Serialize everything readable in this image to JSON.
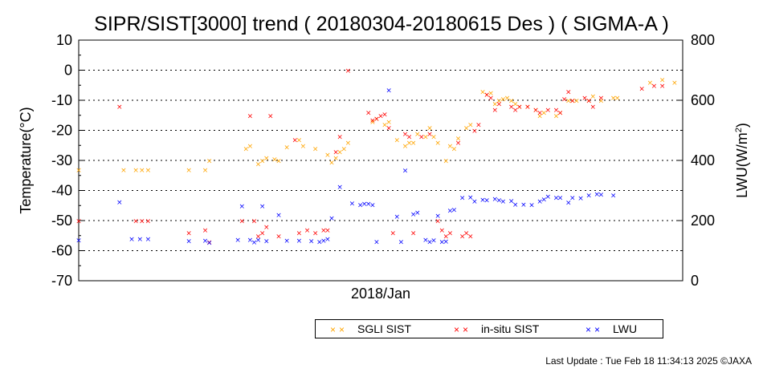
{
  "chart_data": {
    "type": "scatter",
    "title": "SIPR/SIST[3000] trend ( 20180304-20180615 Des ) ( SIGMA-A )",
    "ylabel": "Temperature(°C)",
    "y2label_base": "LWU(W/m",
    "y2label_sup": "2",
    "y2label_end": ")",
    "xlabel": "2018/Jan",
    "ylim": [
      -70,
      10
    ],
    "y2lim": [
      0,
      800
    ],
    "yticks": [
      "10",
      "0",
      "-10",
      "-20",
      "-30",
      "-40",
      "-50",
      "-60",
      "-70"
    ],
    "y2ticks": [
      "800",
      "600",
      "400",
      "200",
      "0"
    ],
    "x_range_days": [
      0,
      100
    ],
    "grid": "dotted horizontal at -60,-40,-20,0 and y2 gridlines",
    "legend_placement": "bottom",
    "series": [
      {
        "name": "SGLI SIST",
        "color": "#ffa500",
        "axis": "left",
        "points": [
          [
            0,
            -33
          ],
          [
            11,
            -33
          ],
          [
            14,
            -33
          ],
          [
            15.5,
            -33
          ],
          [
            17,
            -33
          ],
          [
            27,
            -33
          ],
          [
            31,
            -33
          ],
          [
            32,
            -30
          ],
          [
            41,
            -26
          ],
          [
            42,
            -25
          ],
          [
            44,
            -31
          ],
          [
            45,
            -30
          ],
          [
            46,
            -29
          ],
          [
            48,
            -29.5
          ],
          [
            49,
            -30
          ],
          [
            51,
            -25.5
          ],
          [
            54,
            -23
          ],
          [
            55,
            -25
          ],
          [
            58,
            -26
          ],
          [
            61,
            -28
          ],
          [
            62,
            -30.5
          ],
          [
            63,
            -29
          ],
          [
            64,
            -27
          ],
          [
            65,
            -26
          ],
          [
            66,
            -24
          ],
          [
            72,
            -17
          ],
          [
            73,
            -16
          ],
          [
            75,
            -18
          ],
          [
            76,
            -17
          ],
          [
            78,
            -23
          ],
          [
            80,
            -25
          ],
          [
            81,
            -24
          ],
          [
            82,
            -24
          ],
          [
            83,
            -21
          ],
          [
            85,
            -22
          ],
          [
            86,
            -19
          ],
          [
            87,
            -22
          ],
          [
            88,
            -24
          ],
          [
            90,
            -30
          ],
          [
            91,
            -25
          ],
          [
            92,
            -26
          ],
          [
            93,
            -22.5
          ],
          [
            95,
            -19
          ],
          [
            96,
            -18
          ],
          [
            99,
            -7
          ],
          [
            100,
            -8
          ],
          [
            101,
            -7.5
          ],
          [
            102,
            -11
          ],
          [
            103,
            -10
          ],
          [
            104,
            -9.5
          ],
          [
            105,
            -9
          ],
          [
            106,
            -10
          ],
          [
            107,
            -11
          ],
          [
            108,
            -12
          ],
          [
            110,
            -12
          ],
          [
            112,
            -13
          ],
          [
            113,
            -15
          ],
          [
            114,
            -14
          ],
          [
            117,
            -15
          ],
          [
            118,
            -14
          ],
          [
            120,
            -10
          ],
          [
            121,
            -10
          ],
          [
            122,
            -10
          ],
          [
            125,
            -10
          ],
          [
            126,
            -8.5
          ],
          [
            128,
            -10
          ],
          [
            131,
            -9
          ],
          [
            132,
            -9
          ],
          [
            140,
            -4
          ],
          [
            143,
            -3
          ],
          [
            146,
            -4
          ]
        ]
      },
      {
        "name": "in-situ SIST",
        "color": "#ff0000",
        "axis": "left",
        "points": [
          [
            0,
            -50
          ],
          [
            10,
            -12
          ],
          [
            14,
            -50
          ],
          [
            15.5,
            -50
          ],
          [
            17,
            -50
          ],
          [
            27,
            -54
          ],
          [
            31,
            -53
          ],
          [
            32,
            -57
          ],
          [
            40,
            -50
          ],
          [
            42,
            -15
          ],
          [
            43,
            -50
          ],
          [
            44,
            -55
          ],
          [
            45,
            -54
          ],
          [
            46,
            -52
          ],
          [
            47,
            -15
          ],
          [
            49,
            -55
          ],
          [
            53,
            -23
          ],
          [
            54,
            -54
          ],
          [
            56,
            -53
          ],
          [
            58,
            -54
          ],
          [
            60,
            -53
          ],
          [
            61,
            -53
          ],
          [
            63,
            -27
          ],
          [
            64,
            -22
          ],
          [
            66,
            0
          ],
          [
            71,
            -14
          ],
          [
            72,
            -16.5
          ],
          [
            73,
            -16
          ],
          [
            74,
            -15
          ],
          [
            75,
            -14.5
          ],
          [
            76,
            -19
          ],
          [
            77,
            -54
          ],
          [
            80,
            -21
          ],
          [
            81,
            -22
          ],
          [
            82,
            -54
          ],
          [
            84,
            -22
          ],
          [
            86,
            -21
          ],
          [
            88,
            -50
          ],
          [
            89,
            -53
          ],
          [
            90,
            -55
          ],
          [
            91,
            -54
          ],
          [
            93,
            -24
          ],
          [
            94,
            -55
          ],
          [
            95,
            -54
          ],
          [
            96,
            -55
          ],
          [
            97,
            -20
          ],
          [
            98,
            -18
          ],
          [
            100,
            -8
          ],
          [
            101,
            -9
          ],
          [
            102,
            -13
          ],
          [
            103,
            -11
          ],
          [
            106,
            -12
          ],
          [
            107,
            -13
          ],
          [
            108,
            -12
          ],
          [
            110,
            -12
          ],
          [
            112,
            -13
          ],
          [
            113,
            -14
          ],
          [
            115,
            -13
          ],
          [
            117,
            -13
          ],
          [
            118,
            -14
          ],
          [
            119,
            -9.5
          ],
          [
            120,
            -7
          ],
          [
            121,
            -10
          ],
          [
            124,
            -9
          ],
          [
            125,
            -10
          ],
          [
            126,
            -12
          ],
          [
            128,
            -9
          ],
          [
            138,
            -6
          ],
          [
            141,
            -5
          ],
          [
            143,
            -5
          ]
        ]
      },
      {
        "name": "LWU",
        "color": "#0000ff",
        "axis": "right",
        "points": [
          [
            0,
            136
          ],
          [
            10,
            263
          ],
          [
            13,
            140
          ],
          [
            15,
            140
          ],
          [
            17,
            140
          ],
          [
            27,
            133
          ],
          [
            31,
            135
          ],
          [
            32,
            128
          ],
          [
            39,
            138
          ],
          [
            40,
            250
          ],
          [
            42,
            138
          ],
          [
            43,
            130
          ],
          [
            44,
            138
          ],
          [
            45,
            250
          ],
          [
            46,
            133
          ],
          [
            49,
            220
          ],
          [
            51,
            135
          ],
          [
            54,
            135
          ],
          [
            57,
            133
          ],
          [
            59,
            131
          ],
          [
            60,
            135
          ],
          [
            61,
            140
          ],
          [
            62,
            210
          ],
          [
            64,
            313
          ],
          [
            67,
            259
          ],
          [
            69,
            253
          ],
          [
            70,
            257
          ],
          [
            71,
            258
          ],
          [
            72,
            253
          ],
          [
            73,
            131
          ],
          [
            76,
            635
          ],
          [
            78,
            215
          ],
          [
            79,
            131
          ],
          [
            80,
            368
          ],
          [
            82,
            223
          ],
          [
            83,
            228
          ],
          [
            85,
            138
          ],
          [
            86,
            131
          ],
          [
            87,
            136
          ],
          [
            88,
            217
          ],
          [
            89,
            131
          ],
          [
            90,
            132
          ],
          [
            91,
            235
          ],
          [
            92,
            238
          ],
          [
            94,
            278
          ],
          [
            96,
            279
          ],
          [
            97,
            265
          ],
          [
            99,
            271
          ],
          [
            100,
            269
          ],
          [
            102,
            273
          ],
          [
            103,
            270
          ],
          [
            104,
            266
          ],
          [
            106,
            267
          ],
          [
            107,
            255
          ],
          [
            109,
            255
          ],
          [
            111,
            253
          ],
          [
            113,
            265
          ],
          [
            114,
            272
          ],
          [
            115,
            281
          ],
          [
            117,
            277
          ],
          [
            118,
            278
          ],
          [
            120,
            262
          ],
          [
            121,
            278
          ],
          [
            123,
            276
          ],
          [
            125,
            285
          ],
          [
            127,
            290
          ],
          [
            128,
            288
          ],
          [
            131,
            286
          ]
        ]
      }
    ]
  },
  "legend": {
    "items": [
      {
        "label": "SGLI SIST",
        "color": "#ffa500"
      },
      {
        "label": "in-situ SIST",
        "color": "#ff0000"
      },
      {
        "label": "LWU",
        "color": "#0000ff"
      }
    ]
  },
  "footer": {
    "text": "Last Update : Tue Feb 18 11:34:13 2025  ©JAXA"
  }
}
